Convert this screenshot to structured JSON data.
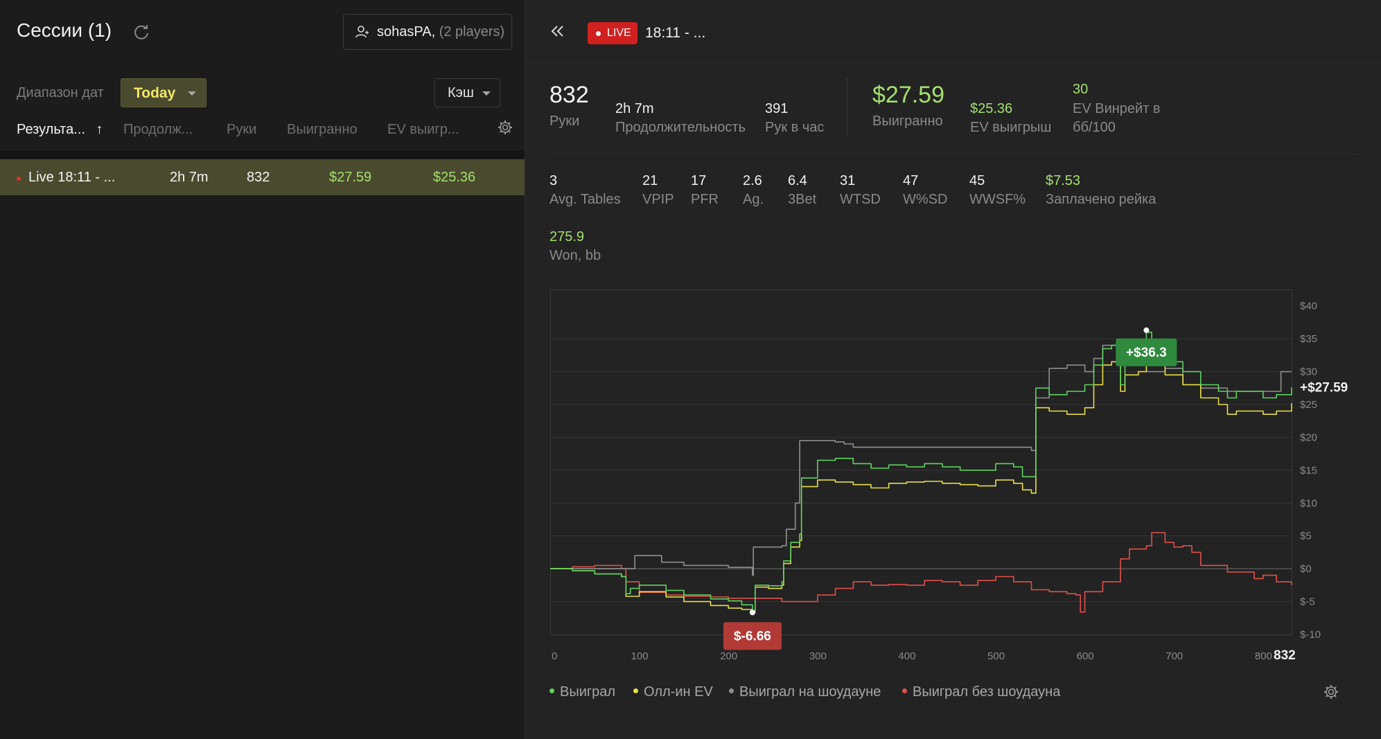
{
  "sidebar": {
    "title": "Сессии (1)",
    "player": {
      "name": "sohasPA",
      "count": "(2 players)"
    },
    "date_range_label": "Диапазон дат",
    "date_value": "Today",
    "game_type": "Кэш",
    "columns": [
      "Результа...",
      "Продолж...",
      "Руки",
      "Выигранно",
      "EV выигр..."
    ],
    "sort_arrow": "↑",
    "rows": [
      {
        "name": "Live 18:11 - ...",
        "duration": "2h 7m",
        "hands": "832",
        "won": "$27.59",
        "ev": "$25.36"
      }
    ]
  },
  "session": {
    "live_label": "LIVE",
    "title": "18:11 - ...",
    "stats_top": {
      "hands": {
        "value": "832",
        "label": "Руки"
      },
      "duration": {
        "value": "2h 7m",
        "label": "Продолжительность"
      },
      "hands_per_hour": {
        "value": "391",
        "label": "Рук в час"
      },
      "won": {
        "value": "$27.59",
        "label": "Выигранно"
      },
      "ev_won": {
        "value": "$25.36",
        "label": "EV выигрыш"
      },
      "ev_winrate": {
        "value": "30",
        "label_line1": "EV Винрейт в",
        "label_line2": "бб/100"
      }
    },
    "stats_row": [
      {
        "value": "3",
        "label": "Avg. Tables",
        "green": false
      },
      {
        "value": "21",
        "label": "VPIP",
        "green": false
      },
      {
        "value": "17",
        "label": "PFR",
        "green": false
      },
      {
        "value": "2.6",
        "label": "Ag.",
        "green": false
      },
      {
        "value": "6.4",
        "label": "3Bet",
        "green": false
      },
      {
        "value": "31",
        "label": "WTSD",
        "green": false
      },
      {
        "value": "47",
        "label": "W%SD",
        "green": false
      },
      {
        "value": "45",
        "label": "WWSF%",
        "green": false
      },
      {
        "value": "$7.53",
        "label": "Заплачено рейка",
        "green": true
      }
    ],
    "won_bb": {
      "value": "275.9",
      "label": "Won, bb"
    }
  },
  "chart_data": {
    "type": "line",
    "x_ticks": [
      "0",
      "100",
      "200",
      "300",
      "400",
      "500",
      "600",
      "700",
      "800"
    ],
    "x_end_label": "832",
    "y_ticks": [
      "$40",
      "$35",
      "$30",
      "$25",
      "$20",
      "$15",
      "$10",
      "$5",
      "$0",
      "$-5",
      "$-10"
    ],
    "xlim": [
      0,
      832
    ],
    "ylim": [
      -10,
      40
    ],
    "end_label": "+$27.59",
    "max_annotation": {
      "x": 669,
      "y": 36.3,
      "label": "+$36.3"
    },
    "min_annotation": {
      "x": 227,
      "y": -6.66,
      "label": "$-6.66"
    },
    "series": [
      {
        "name": "Выиграл",
        "color": "#5fd35f",
        "points": [
          [
            0,
            0
          ],
          [
            25,
            -0.3
          ],
          [
            50,
            -0.8
          ],
          [
            80,
            -1.2
          ],
          [
            85,
            -3.8
          ],
          [
            90,
            -3
          ],
          [
            100,
            -2.5
          ],
          [
            130,
            -3.3
          ],
          [
            150,
            -4
          ],
          [
            180,
            -4.6
          ],
          [
            200,
            -4.9
          ],
          [
            215,
            -5.5
          ],
          [
            227,
            -6.66
          ],
          [
            230,
            -2.5
          ],
          [
            245,
            -2.6
          ],
          [
            260,
            -2
          ],
          [
            262,
            1.2
          ],
          [
            270,
            4
          ],
          [
            280,
            5.3
          ],
          [
            282,
            13.8
          ],
          [
            300,
            16.5
          ],
          [
            320,
            16.8
          ],
          [
            340,
            16
          ],
          [
            360,
            15.3
          ],
          [
            380,
            15.8
          ],
          [
            400,
            15.5
          ],
          [
            420,
            16
          ],
          [
            440,
            15.5
          ],
          [
            460,
            15
          ],
          [
            480,
            15
          ],
          [
            500,
            16
          ],
          [
            520,
            15.5
          ],
          [
            530,
            14
          ],
          [
            540,
            14
          ],
          [
            545,
            27.5
          ],
          [
            560,
            26.5
          ],
          [
            580,
            27
          ],
          [
            600,
            28
          ],
          [
            610,
            31
          ],
          [
            620,
            33.5
          ],
          [
            630,
            34
          ],
          [
            640,
            28
          ],
          [
            645,
            32
          ],
          [
            660,
            32
          ],
          [
            669,
            36
          ],
          [
            675,
            33
          ],
          [
            690,
            31
          ],
          [
            700,
            31.5
          ],
          [
            710,
            30
          ],
          [
            730,
            28
          ],
          [
            750,
            27
          ],
          [
            760,
            26
          ],
          [
            770,
            27
          ],
          [
            790,
            27
          ],
          [
            800,
            26
          ],
          [
            815,
            26.5
          ],
          [
            832,
            27.59
          ]
        ]
      },
      {
        "name": "Олл-ин EV",
        "color": "#e8e045",
        "points": [
          [
            0,
            0
          ],
          [
            25,
            -0.3
          ],
          [
            50,
            -0.8
          ],
          [
            80,
            -1.2
          ],
          [
            85,
            -4.2
          ],
          [
            100,
            -3.5
          ],
          [
            130,
            -4.3
          ],
          [
            150,
            -5
          ],
          [
            180,
            -5.6
          ],
          [
            200,
            -6
          ],
          [
            215,
            -6.2
          ],
          [
            227,
            -6.4
          ],
          [
            230,
            -2.8
          ],
          [
            245,
            -3
          ],
          [
            260,
            -2.5
          ],
          [
            262,
            0.8
          ],
          [
            270,
            3.3
          ],
          [
            280,
            4.3
          ],
          [
            282,
            12.5
          ],
          [
            300,
            13.5
          ],
          [
            320,
            13.2
          ],
          [
            340,
            12.8
          ],
          [
            360,
            12.3
          ],
          [
            380,
            13
          ],
          [
            400,
            13.2
          ],
          [
            420,
            13.3
          ],
          [
            440,
            13
          ],
          [
            460,
            12.8
          ],
          [
            480,
            12.6
          ],
          [
            500,
            13.5
          ],
          [
            520,
            13
          ],
          [
            530,
            12
          ],
          [
            540,
            11.5
          ],
          [
            545,
            24.5
          ],
          [
            560,
            24
          ],
          [
            580,
            23.5
          ],
          [
            600,
            24.5
          ],
          [
            610,
            28
          ],
          [
            620,
            31
          ],
          [
            630,
            31.5
          ],
          [
            640,
            27
          ],
          [
            645,
            29.5
          ],
          [
            660,
            30
          ],
          [
            669,
            31
          ],
          [
            675,
            31
          ],
          [
            690,
            29.5
          ],
          [
            700,
            29.5
          ],
          [
            710,
            28
          ],
          [
            730,
            26
          ],
          [
            750,
            25
          ],
          [
            760,
            23.5
          ],
          [
            770,
            24
          ],
          [
            790,
            24
          ],
          [
            800,
            23.5
          ],
          [
            815,
            24
          ],
          [
            832,
            25.2
          ]
        ]
      },
      {
        "name": "Выиграл на шоудауне",
        "color": "#8f8f8f",
        "points": [
          [
            0,
            0
          ],
          [
            80,
            0
          ],
          [
            95,
            2
          ],
          [
            115,
            2
          ],
          [
            125,
            1
          ],
          [
            150,
            0.5
          ],
          [
            200,
            0.2
          ],
          [
            227,
            -1
          ],
          [
            228,
            3.3
          ],
          [
            260,
            3.5
          ],
          [
            265,
            6
          ],
          [
            275,
            10
          ],
          [
            280,
            19.5
          ],
          [
            300,
            19.5
          ],
          [
            320,
            19.3
          ],
          [
            330,
            19
          ],
          [
            340,
            18.5
          ],
          [
            400,
            18.5
          ],
          [
            450,
            18.5
          ],
          [
            500,
            18.5
          ],
          [
            540,
            18
          ],
          [
            545,
            26
          ],
          [
            560,
            30.5
          ],
          [
            580,
            31
          ],
          [
            600,
            30
          ],
          [
            610,
            32
          ],
          [
            620,
            34
          ],
          [
            640,
            31
          ],
          [
            660,
            31
          ],
          [
            669,
            30
          ],
          [
            690,
            30.5
          ],
          [
            710,
            28
          ],
          [
            730,
            27.5
          ],
          [
            760,
            27
          ],
          [
            800,
            27
          ],
          [
            815,
            27
          ],
          [
            820,
            30
          ],
          [
            832,
            30
          ]
        ]
      },
      {
        "name": "Выиграл без шоудауна",
        "color": "#e0504a",
        "points": [
          [
            0,
            0
          ],
          [
            25,
            0.3
          ],
          [
            50,
            0.5
          ],
          [
            80,
            0
          ],
          [
            85,
            -2
          ],
          [
            100,
            -3.6
          ],
          [
            130,
            -4
          ],
          [
            150,
            -4.2
          ],
          [
            180,
            -4.3
          ],
          [
            200,
            -4.5
          ],
          [
            227,
            -4.5
          ],
          [
            260,
            -5
          ],
          [
            300,
            -4
          ],
          [
            320,
            -3
          ],
          [
            340,
            -2
          ],
          [
            360,
            -2.5
          ],
          [
            380,
            -2.4
          ],
          [
            400,
            -2.5
          ],
          [
            420,
            -1.8
          ],
          [
            440,
            -2
          ],
          [
            460,
            -2.5
          ],
          [
            480,
            -1.8
          ],
          [
            500,
            -1.2
          ],
          [
            520,
            -2
          ],
          [
            540,
            -3.2
          ],
          [
            560,
            -3.5
          ],
          [
            580,
            -3.8
          ],
          [
            590,
            -4
          ],
          [
            595,
            -6.6
          ],
          [
            600,
            -3.5
          ],
          [
            620,
            -2
          ],
          [
            640,
            1.5
          ],
          [
            650,
            3
          ],
          [
            660,
            3
          ],
          [
            669,
            3.5
          ],
          [
            675,
            5.5
          ],
          [
            690,
            4
          ],
          [
            700,
            3.3
          ],
          [
            710,
            3.5
          ],
          [
            720,
            2.5
          ],
          [
            730,
            0.5
          ],
          [
            760,
            -0.5
          ],
          [
            790,
            -1.5
          ],
          [
            800,
            -1
          ],
          [
            815,
            -2
          ],
          [
            832,
            -2.5
          ]
        ]
      }
    ],
    "legend_position": "bottom"
  }
}
